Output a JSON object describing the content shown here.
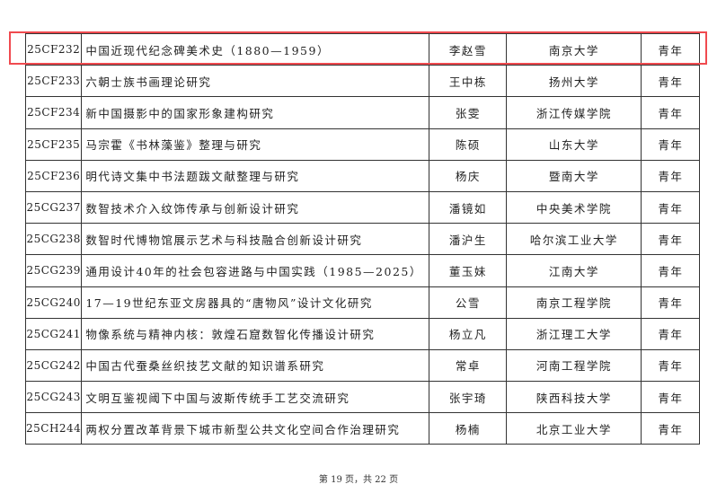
{
  "highlight_color": "#f04a4f",
  "rows": [
    {
      "id": "25CF232",
      "title": "中国近现代纪念碑美术史（1880—1959）",
      "name": "李赵雪",
      "institution": "南京大学",
      "category": "青年"
    },
    {
      "id": "25CF233",
      "title": "六朝士族书画理论研究",
      "name": "王中栋",
      "institution": "扬州大学",
      "category": "青年"
    },
    {
      "id": "25CF234",
      "title": "新中国摄影中的国家形象建构研究",
      "name": "张雯",
      "institution": "浙江传媒学院",
      "category": "青年"
    },
    {
      "id": "25CF235",
      "title": "马宗霍《书林藻鉴》整理与研究",
      "name": "陈硕",
      "institution": "山东大学",
      "category": "青年"
    },
    {
      "id": "25CF236",
      "title": "明代诗文集中书法题跋文献整理与研究",
      "name": "杨庆",
      "institution": "暨南大学",
      "category": "青年"
    },
    {
      "id": "25CG237",
      "title": "数智技术介入纹饰传承与创新设计研究",
      "name": "潘镜如",
      "institution": "中央美术学院",
      "category": "青年"
    },
    {
      "id": "25CG238",
      "title": "数智时代博物馆展示艺术与科技融合创新设计研究",
      "name": "潘沪生",
      "institution": "哈尔滨工业大学",
      "category": "青年"
    },
    {
      "id": "25CG239",
      "title": "通用设计40年的社会包容进路与中国实践（1985—2025）",
      "name": "董玉妹",
      "institution": "江南大学",
      "category": "青年"
    },
    {
      "id": "25CG240",
      "title": "17—19世纪东亚文房器具的“唐物风”设计文化研究",
      "name": "公雪",
      "institution": "南京工程学院",
      "category": "青年"
    },
    {
      "id": "25CG241",
      "title": "物像系统与精神内核：敦煌石窟数智化传播设计研究",
      "name": "杨立凡",
      "institution": "浙江理工大学",
      "category": "青年"
    },
    {
      "id": "25CG242",
      "title": "中国古代蚕桑丝织技艺文献的知识谱系研究",
      "name": "常卓",
      "institution": "河南工程学院",
      "category": "青年"
    },
    {
      "id": "25CG243",
      "title": "文明互鉴视阈下中国与波斯传统手工艺交流研究",
      "name": "张宇琦",
      "institution": "陕西科技大学",
      "category": "青年"
    },
    {
      "id": "25CH244",
      "title": "两权分置改革背景下城市新型公共文化空间合作治理研究",
      "name": "杨楠",
      "institution": "北京工业大学",
      "category": "青年"
    }
  ],
  "footer": "第 19 页，共 22 页"
}
